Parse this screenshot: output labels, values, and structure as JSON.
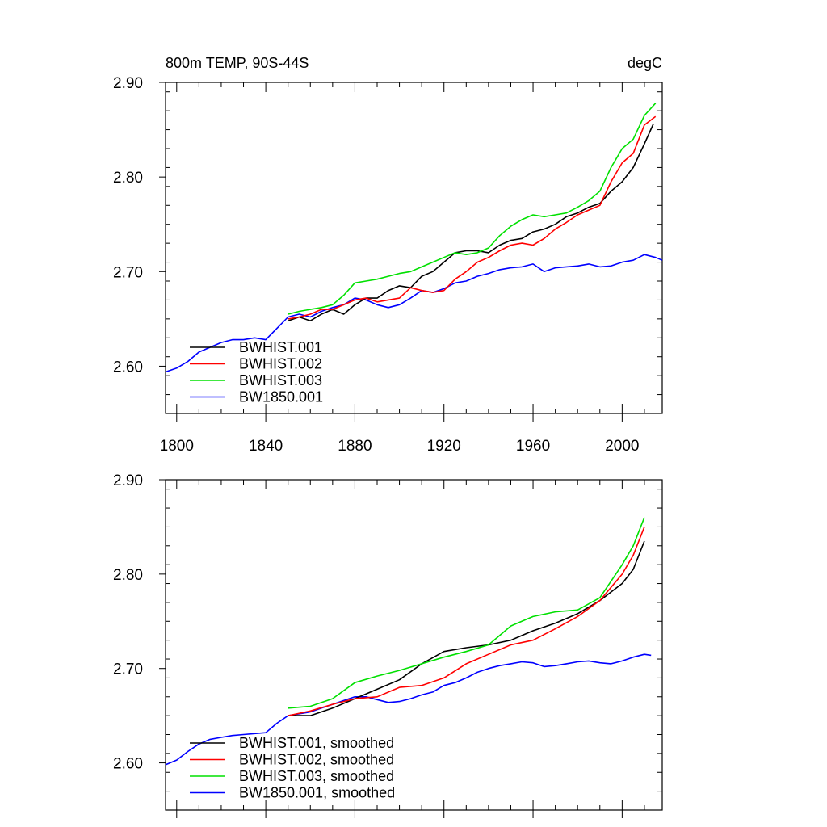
{
  "chart_data": [
    {
      "type": "line",
      "title": "800m TEMP, 90S-44S",
      "units_label": "degC",
      "xlim": [
        1795,
        2018
      ],
      "ylim": [
        2.55,
        2.9
      ],
      "x_ticks": [
        1800,
        1840,
        1880,
        1920,
        1960,
        2000
      ],
      "y_ticks": [
        2.6,
        2.7,
        2.8,
        2.9
      ],
      "y_tick_labels": [
        "2.60",
        "2.70",
        "2.80",
        "2.90"
      ],
      "x_tick_labels": [
        "1800",
        "1840",
        "1880",
        "1920",
        "1960",
        "2000"
      ],
      "legend_position": "bottom-left",
      "series": [
        {
          "name": "BWHIST.001",
          "color": "#000000",
          "x": [
            1850,
            1855,
            1860,
            1865,
            1870,
            1875,
            1880,
            1885,
            1890,
            1895,
            1900,
            1905,
            1910,
            1915,
            1920,
            1925,
            1930,
            1935,
            1940,
            1945,
            1950,
            1955,
            1960,
            1965,
            1970,
            1975,
            1980,
            1985,
            1990,
            1995,
            2000,
            2005,
            2010,
            2014
          ],
          "y": [
            2.648,
            2.652,
            2.648,
            2.655,
            2.66,
            2.655,
            2.665,
            2.672,
            2.672,
            2.68,
            2.685,
            2.683,
            2.695,
            2.7,
            2.71,
            2.72,
            2.722,
            2.722,
            2.72,
            2.728,
            2.733,
            2.735,
            2.742,
            2.745,
            2.75,
            2.758,
            2.762,
            2.768,
            2.772,
            2.785,
            2.795,
            2.81,
            2.835,
            2.856
          ]
        },
        {
          "name": "BWHIST.002",
          "color": "#ff0000",
          "x": [
            1850,
            1855,
            1860,
            1865,
            1870,
            1875,
            1880,
            1885,
            1890,
            1895,
            1900,
            1905,
            1910,
            1915,
            1920,
            1925,
            1930,
            1935,
            1940,
            1945,
            1950,
            1955,
            1960,
            1965,
            1970,
            1975,
            1980,
            1985,
            1990,
            1995,
            2000,
            2005,
            2010,
            2015
          ],
          "y": [
            2.65,
            2.652,
            2.655,
            2.66,
            2.66,
            2.665,
            2.67,
            2.672,
            2.668,
            2.67,
            2.672,
            2.683,
            2.68,
            2.678,
            2.68,
            2.692,
            2.7,
            2.71,
            2.715,
            2.722,
            2.728,
            2.73,
            2.728,
            2.735,
            2.745,
            2.752,
            2.76,
            2.765,
            2.77,
            2.795,
            2.815,
            2.825,
            2.855,
            2.864
          ]
        },
        {
          "name": "BWHIST.003",
          "color": "#00e000",
          "x": [
            1850,
            1855,
            1860,
            1865,
            1870,
            1875,
            1880,
            1885,
            1890,
            1895,
            1900,
            1905,
            1910,
            1915,
            1920,
            1925,
            1930,
            1935,
            1940,
            1945,
            1950,
            1955,
            1960,
            1965,
            1970,
            1975,
            1980,
            1985,
            1990,
            1995,
            2000,
            2005,
            2010,
            2015
          ],
          "y": [
            2.655,
            2.658,
            2.66,
            2.662,
            2.665,
            2.675,
            2.688,
            2.69,
            2.692,
            2.695,
            2.698,
            2.7,
            2.705,
            2.71,
            2.715,
            2.72,
            2.718,
            2.72,
            2.725,
            2.738,
            2.748,
            2.755,
            2.76,
            2.758,
            2.76,
            2.762,
            2.768,
            2.775,
            2.785,
            2.81,
            2.83,
            2.84,
            2.865,
            2.878
          ]
        },
        {
          "name": "BW1850.001",
          "color": "#0000ff",
          "x": [
            1795,
            1800,
            1805,
            1810,
            1815,
            1820,
            1825,
            1830,
            1835,
            1840,
            1845,
            1850,
            1855,
            1860,
            1865,
            1870,
            1875,
            1880,
            1885,
            1890,
            1895,
            1900,
            1905,
            1910,
            1915,
            1920,
            1925,
            1930,
            1935,
            1940,
            1945,
            1950,
            1955,
            1960,
            1965,
            1970,
            1975,
            1980,
            1985,
            1990,
            1995,
            2000,
            2005,
            2010,
            2015,
            2018
          ],
          "y": [
            2.594,
            2.598,
            2.605,
            2.615,
            2.62,
            2.625,
            2.628,
            2.628,
            2.63,
            2.628,
            2.64,
            2.652,
            2.655,
            2.652,
            2.658,
            2.662,
            2.665,
            2.672,
            2.67,
            2.665,
            2.662,
            2.665,
            2.672,
            2.68,
            2.678,
            2.682,
            2.688,
            2.69,
            2.695,
            2.698,
            2.702,
            2.704,
            2.705,
            2.708,
            2.7,
            2.704,
            2.705,
            2.706,
            2.708,
            2.705,
            2.706,
            2.71,
            2.712,
            2.718,
            2.715,
            2.712
          ]
        }
      ]
    },
    {
      "type": "line",
      "xlim": [
        1795,
        2018
      ],
      "ylim": [
        2.55,
        2.9
      ],
      "x_ticks": [
        1800,
        1840,
        1880,
        1920,
        1960,
        2000
      ],
      "y_ticks": [
        2.6,
        2.7,
        2.8,
        2.9
      ],
      "y_tick_labels": [
        "2.60",
        "2.70",
        "2.80",
        "2.90"
      ],
      "legend_position": "bottom-left",
      "series": [
        {
          "name": "BWHIST.001, smoothed",
          "color": "#000000",
          "x": [
            1850,
            1860,
            1870,
            1880,
            1890,
            1900,
            1910,
            1920,
            1930,
            1940,
            1950,
            1960,
            1970,
            1980,
            1990,
            2000,
            2005,
            2010
          ],
          "y": [
            2.65,
            2.65,
            2.658,
            2.668,
            2.678,
            2.688,
            2.705,
            2.718,
            2.722,
            2.725,
            2.73,
            2.74,
            2.748,
            2.758,
            2.772,
            2.79,
            2.805,
            2.835
          ]
        },
        {
          "name": "BWHIST.002, smoothed",
          "color": "#ff0000",
          "x": [
            1850,
            1860,
            1870,
            1880,
            1890,
            1900,
            1910,
            1920,
            1930,
            1940,
            1950,
            1960,
            1970,
            1980,
            1990,
            2000,
            2005,
            2010
          ],
          "y": [
            2.65,
            2.655,
            2.662,
            2.668,
            2.67,
            2.68,
            2.682,
            2.69,
            2.705,
            2.715,
            2.725,
            2.73,
            2.742,
            2.755,
            2.772,
            2.8,
            2.82,
            2.85
          ]
        },
        {
          "name": "BWHIST.003, smoothed",
          "color": "#00e000",
          "x": [
            1850,
            1860,
            1870,
            1880,
            1890,
            1900,
            1910,
            1920,
            1930,
            1940,
            1950,
            1960,
            1970,
            1980,
            1990,
            2000,
            2005,
            2010
          ],
          "y": [
            2.658,
            2.66,
            2.668,
            2.685,
            2.692,
            2.698,
            2.705,
            2.712,
            2.718,
            2.725,
            2.745,
            2.755,
            2.76,
            2.762,
            2.775,
            2.81,
            2.83,
            2.86
          ]
        },
        {
          "name": "BW1850.001, smoothed",
          "color": "#0000ff",
          "x": [
            1795,
            1800,
            1805,
            1810,
            1815,
            1820,
            1825,
            1830,
            1835,
            1840,
            1845,
            1850,
            1855,
            1860,
            1865,
            1870,
            1875,
            1880,
            1885,
            1890,
            1895,
            1900,
            1905,
            1910,
            1915,
            1920,
            1925,
            1930,
            1935,
            1940,
            1945,
            1950,
            1955,
            1960,
            1965,
            1970,
            1975,
            1980,
            1985,
            1990,
            1995,
            2000,
            2005,
            2010,
            2013
          ],
          "y": [
            2.598,
            2.603,
            2.612,
            2.62,
            2.625,
            2.627,
            2.629,
            2.63,
            2.631,
            2.632,
            2.642,
            2.65,
            2.652,
            2.654,
            2.658,
            2.662,
            2.666,
            2.67,
            2.67,
            2.667,
            2.664,
            2.665,
            2.668,
            2.672,
            2.675,
            2.682,
            2.685,
            2.69,
            2.696,
            2.7,
            2.703,
            2.705,
            2.707,
            2.706,
            2.702,
            2.703,
            2.705,
            2.707,
            2.708,
            2.706,
            2.705,
            2.708,
            2.712,
            2.715,
            2.714
          ]
        }
      ]
    }
  ]
}
